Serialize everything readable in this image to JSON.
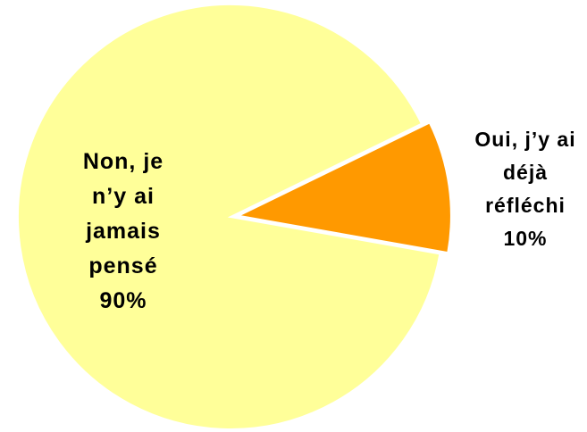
{
  "chart_data": {
    "type": "pie",
    "categories": [
      "Non, je n’y ai jamais pensé",
      "Oui, j’y ai déjà réfléchi"
    ],
    "values": [
      90,
      10
    ],
    "value_labels": [
      "90%",
      "10%"
    ],
    "colors": [
      "#ffff99",
      "#ff9900"
    ]
  }
}
